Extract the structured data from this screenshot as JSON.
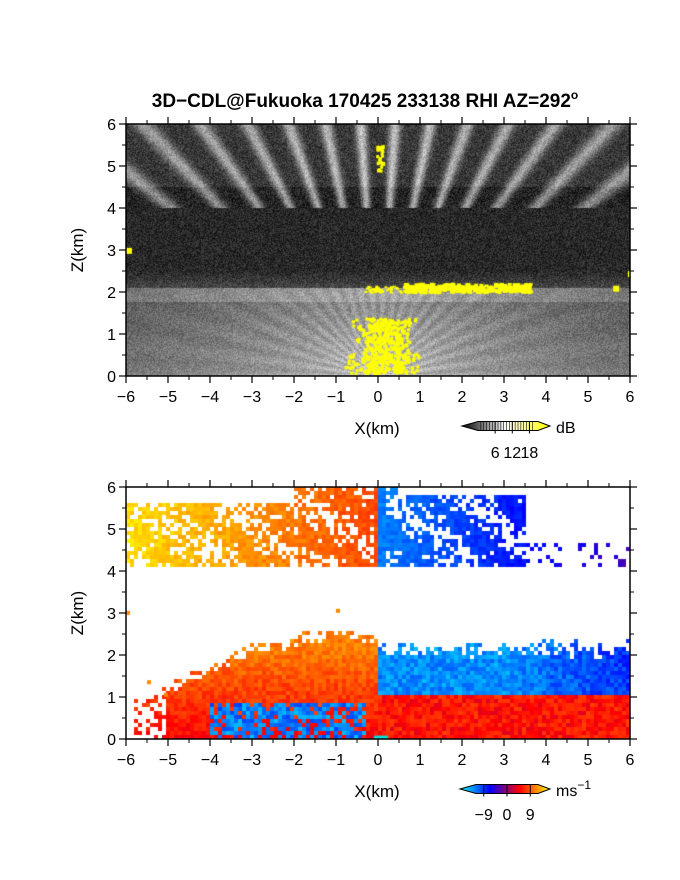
{
  "figure": {
    "title": "3D−CDL@Fukuoka 170425 233138 RHI AZ=292",
    "title_degree": "o"
  },
  "chart_data": [
    {
      "type": "heatmap",
      "panel": "backscatter",
      "xlabel": "X(km)",
      "ylabel": "Z(km)",
      "xlim": [
        -6,
        6
      ],
      "ylim": [
        0,
        6
      ],
      "x_ticks": [
        -6,
        -5,
        -4,
        -3,
        -2,
        -1,
        0,
        1,
        2,
        3,
        4,
        5,
        6
      ],
      "y_ticks": [
        0,
        1,
        2,
        3,
        4,
        5,
        6
      ],
      "x_tick_labels": [
        "−6",
        "−5",
        "−4",
        "−3",
        "−2",
        "−1",
        "0",
        "1",
        "2",
        "3",
        "4",
        "5",
        "6"
      ],
      "y_tick_labels": [
        "0",
        "1",
        "2",
        "3",
        "4",
        "5",
        "6"
      ],
      "colorbar": {
        "unit": "dB",
        "range": [
          0,
          21
        ],
        "ticks": [
          6,
          12,
          18
        ],
        "tick_labels": [
          "6",
          "12",
          "18"
        ],
        "palette": [
          "#000000",
          "#ffffff",
          "#ffff00"
        ]
      },
      "features": [
        {
          "kind": "aerosol_layer",
          "z_top": 2.0
        },
        {
          "kind": "cloud_layer",
          "z_bottom": 4.0,
          "z_top": 6.0
        },
        {
          "kind": "saturated_cloud_base",
          "x_range": [
            0.5,
            3.5
          ],
          "z": 2.1
        }
      ]
    },
    {
      "type": "heatmap",
      "panel": "doppler_velocity",
      "xlabel": "X(km)",
      "ylabel": "Z(km)",
      "xlim": [
        -6,
        6
      ],
      "ylim": [
        0,
        6
      ],
      "x_ticks": [
        -6,
        -5,
        -4,
        -3,
        -2,
        -1,
        0,
        1,
        2,
        3,
        4,
        5,
        6
      ],
      "y_ticks": [
        0,
        1,
        2,
        3,
        4,
        5,
        6
      ],
      "x_tick_labels": [
        "−6",
        "−5",
        "−4",
        "−3",
        "−2",
        "−1",
        "0",
        "1",
        "2",
        "3",
        "4",
        "5",
        "6"
      ],
      "y_tick_labels": [
        "0",
        "1",
        "2",
        "3",
        "4",
        "5",
        "6"
      ],
      "colorbar": {
        "unit": "ms",
        "unit_exp": "−1",
        "range": [
          -12,
          12
        ],
        "ticks": [
          -9,
          0,
          9
        ],
        "tick_labels": [
          "−9",
          "0",
          "9"
        ],
        "palette": [
          "#00ffff",
          "#0000ff",
          "#ff0000",
          "#ffff00"
        ]
      },
      "features": [
        {
          "kind": "lower_layer",
          "z_top": 2.5,
          "left_sign": "positive",
          "right_sign": "negative"
        },
        {
          "kind": "upper_layer",
          "z_bottom": 4.1,
          "z_top": 6.0,
          "left_sign": "positive",
          "right_sign": "negative"
        }
      ]
    }
  ]
}
